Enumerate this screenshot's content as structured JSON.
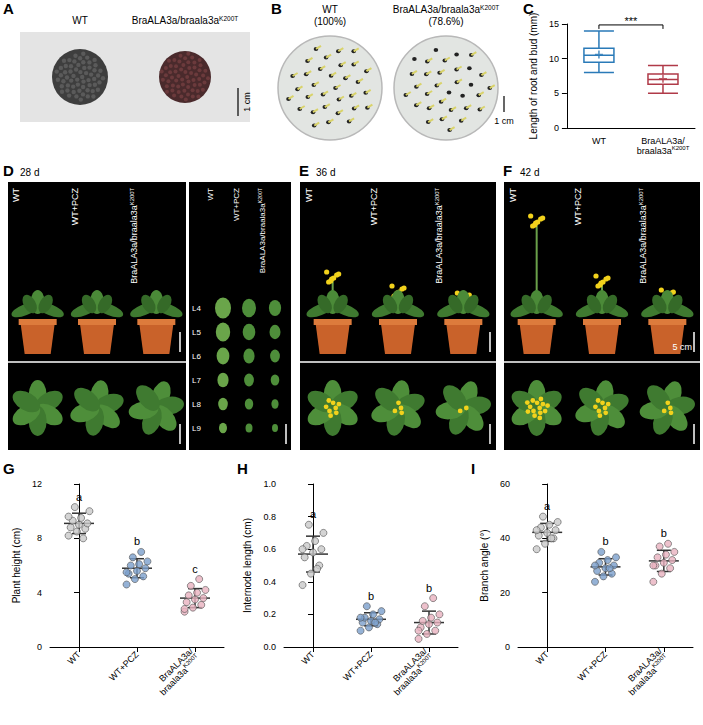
{
  "superscript": "K200T",
  "photo_panels": [
    {
      "letter": "A",
      "labels": [
        "WT",
        "BraALA3a/braala3aK200T"
      ],
      "scale": "1 cm"
    },
    {
      "letter": "B",
      "labels": [
        "WT",
        "BraALA3a/braala3aK200T"
      ],
      "percent_labels": [
        "(100%)",
        "(78.6%)"
      ],
      "scale": "1 cm"
    },
    {
      "letter": "D",
      "day": "28 d",
      "labels": [
        "WT",
        "WT+PCZ",
        "BraALA3a/braala3aK200T"
      ],
      "leaf_labels": [
        "L4",
        "L5",
        "L6",
        "L7",
        "L8",
        "L9"
      ]
    },
    {
      "letter": "E",
      "day": "36 d",
      "labels": [
        "WT",
        "WT+PCZ",
        "BraALA3a/braala3aK200T"
      ]
    },
    {
      "letter": "F",
      "day": "42 d",
      "labels": [
        "WT",
        "WT+PCZ",
        "BraALA3a/braala3aK200T"
      ],
      "scale": "5 cm"
    }
  ],
  "chart_data": [
    {
      "letter": "C",
      "type": "boxplot",
      "ylabel": "Length of root and bud (mm)",
      "categories": [
        "WT",
        "BraALA3a/braala3aK200T"
      ],
      "colors": [
        "#2a7ab8",
        "#b03a48"
      ],
      "values": [
        [
          8,
          9.5,
          10.5,
          11.5,
          14
        ],
        [
          5,
          6.3,
          7,
          7.8,
          9
        ]
      ],
      "means": [
        10.6,
        7.1
      ],
      "ylim": [
        0,
        15
      ],
      "yticks": [
        0,
        5,
        10,
        15
      ],
      "annotation": "***"
    },
    {
      "letter": "G",
      "type": "scatter",
      "ylabel": "Plant height (cm)",
      "categories": [
        "WT",
        "WT+PCZ",
        "BraALA3a/braala3aK200T"
      ],
      "colors": [
        "#c9c9c9",
        "#7a9fcc",
        "#e9b2bf"
      ],
      "values": [
        [
          8.2,
          8.5,
          8.7,
          8.8,
          9.0,
          9.1,
          9.3,
          9.5,
          10.0,
          10.3,
          8.0,
          9.6
        ],
        [
          4.6,
          5.0,
          5.2,
          5.4,
          5.6,
          5.8,
          6.0,
          6.1,
          6.3,
          6.6,
          7.0,
          5.5
        ],
        [
          2.6,
          2.9,
          3.1,
          3.3,
          3.5,
          3.6,
          3.8,
          4.0,
          4.2,
          4.5,
          5.0,
          2.8
        ]
      ],
      "means": [
        9.1,
        5.8,
        3.6
      ],
      "errors": [
        0.75,
        0.7,
        0.7
      ],
      "letters": [
        "a",
        "b",
        "c"
      ],
      "ylim": [
        0,
        12
      ],
      "yticks": [
        0,
        4,
        8,
        12
      ]
    },
    {
      "letter": "H",
      "type": "scatter",
      "ylabel": "Internode length (cm)",
      "categories": [
        "WT",
        "WT+PCZ",
        "BraALA3a/braala3aK200T"
      ],
      "colors": [
        "#c9c9c9",
        "#7a9fcc",
        "#e9b2bf"
      ],
      "values": [
        [
          0.38,
          0.45,
          0.5,
          0.55,
          0.58,
          0.6,
          0.62,
          0.65,
          0.7,
          0.75,
          0.48,
          0.6
        ],
        [
          0.1,
          0.12,
          0.14,
          0.15,
          0.16,
          0.17,
          0.18,
          0.2,
          0.22,
          0.25,
          0.15,
          0.18
        ],
        [
          0.05,
          0.08,
          0.1,
          0.12,
          0.14,
          0.15,
          0.16,
          0.18,
          0.2,
          0.25,
          0.3,
          0.1
        ]
      ],
      "means": [
        0.57,
        0.17,
        0.15
      ],
      "errors": [
        0.11,
        0.04,
        0.07
      ],
      "letters": [
        "a",
        "b",
        "b"
      ],
      "ylim": [
        0,
        1
      ],
      "yticks": [
        {
          "value": 0,
          "label": "0.0"
        },
        0.2,
        0.4,
        0.6,
        0.8,
        {
          "value": 1,
          "label": "1.0"
        }
      ]
    },
    {
      "letter": "I",
      "type": "scatter",
      "ylabel": "Branch angle (°)",
      "categories": [
        "WT",
        "WT+PCZ",
        "BraALA3a/braala3aK200T"
      ],
      "colors": [
        "#c9c9c9",
        "#7a9fcc",
        "#e9b2bf"
      ],
      "values": [
        [
          36,
          38,
          40,
          41,
          42,
          43,
          44,
          45,
          46,
          48,
          40,
          43
        ],
        [
          24,
          26,
          27,
          28,
          29,
          30,
          31,
          32,
          33,
          35,
          29,
          30
        ],
        [
          24,
          27,
          29,
          30,
          31,
          32,
          33,
          34,
          35,
          37,
          38,
          30
        ]
      ],
      "means": [
        42.2,
        29.5,
        31.7
      ],
      "errors": [
        3.3,
        3.0,
        3.9
      ],
      "letters": [
        "a",
        "b",
        "b"
      ],
      "ylim": [
        0,
        60
      ],
      "yticks": [
        0,
        20,
        40,
        60
      ]
    }
  ]
}
